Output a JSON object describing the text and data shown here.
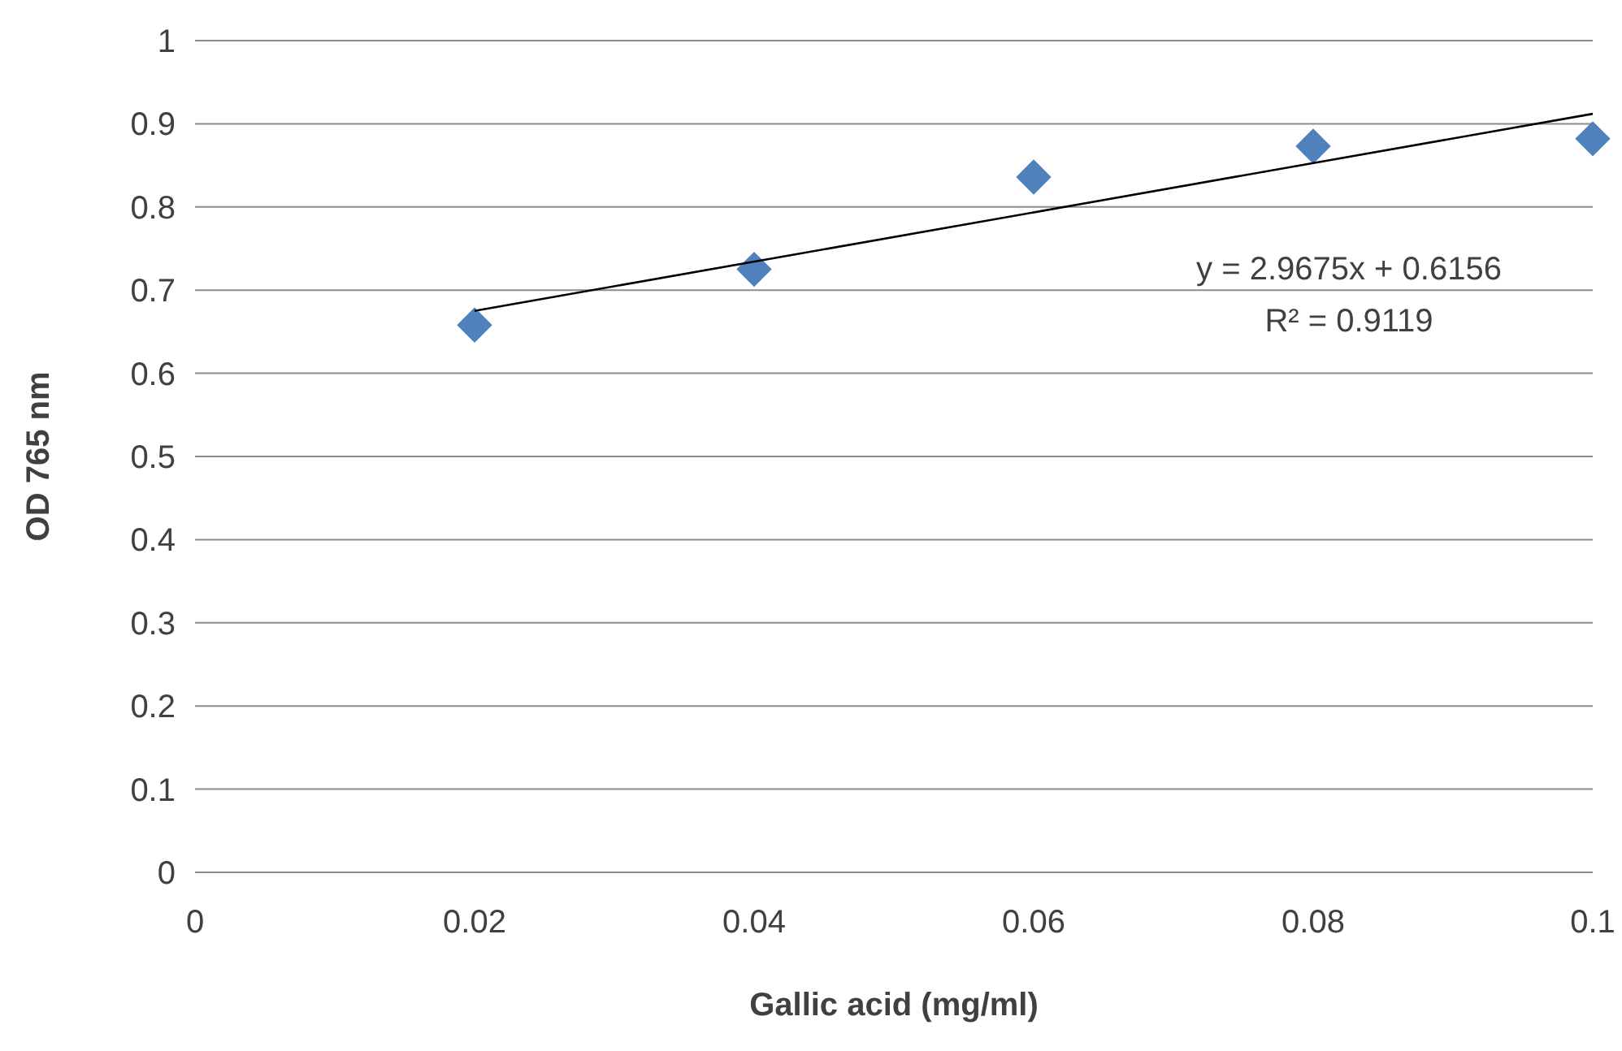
{
  "chart_data": {
    "type": "scatter",
    "xlabel": "Gallic acid (mg/ml)",
    "ylabel": "OD 765 nm",
    "x": [
      0.02,
      0.04,
      0.06,
      0.08,
      0.1
    ],
    "series": [
      {
        "color": "#4f81bd",
        "marker": "diamond",
        "values": [
          0.658,
          0.725,
          0.836,
          0.873,
          0.882
        ]
      },
      {
        "type": "line",
        "color": "#000000",
        "x": [
          0.02,
          0.1
        ],
        "values": [
          0.675,
          0.912
        ]
      }
    ],
    "xlim": [
      0,
      0.1
    ],
    "xticks": [
      0,
      0.02,
      0.04,
      0.06,
      0.08,
      0.1
    ],
    "ylim": [
      0,
      1
    ],
    "yticks": [
      0,
      0.1,
      0.2,
      0.3,
      0.4,
      0.5,
      0.6,
      0.7,
      0.8,
      0.9,
      1
    ],
    "grid": "y",
    "annotations": [
      "y = 2.9675x + 0.6156",
      "R² = 0.9119"
    ]
  }
}
